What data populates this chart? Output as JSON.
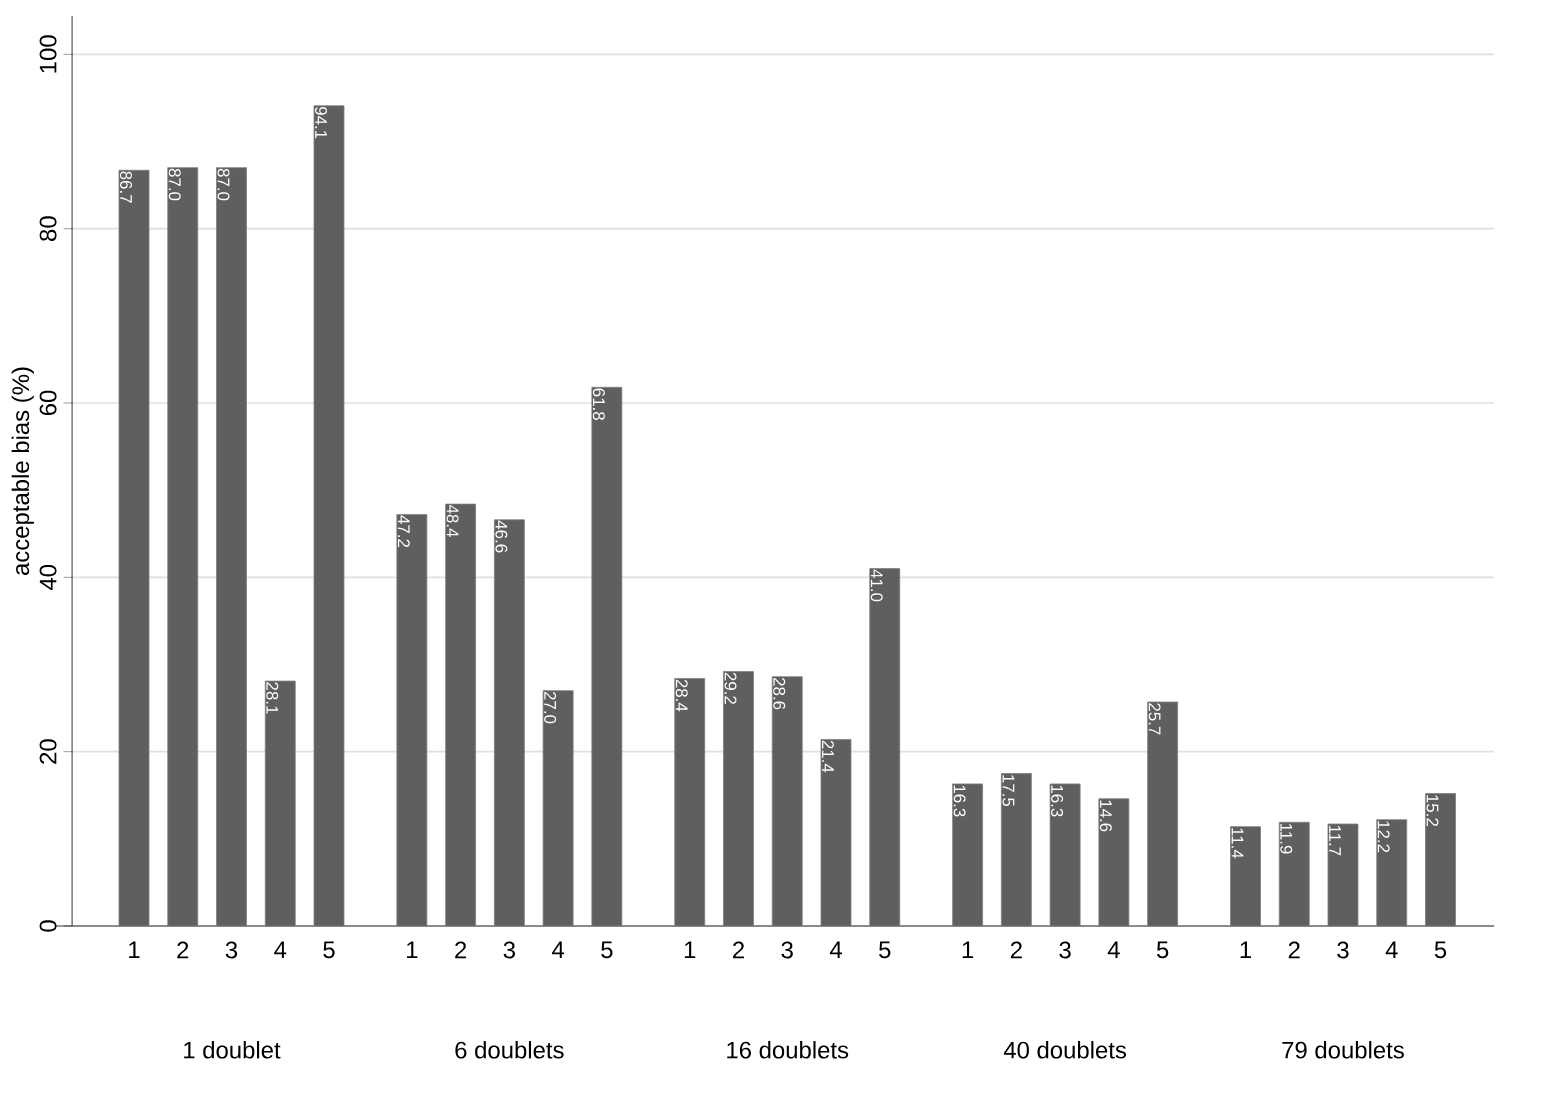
{
  "chart_data": {
    "type": "bar",
    "ylabel": "acceptable bias (%)",
    "categories": [
      "1",
      "2",
      "3",
      "4",
      "5",
      "1",
      "2",
      "3",
      "4",
      "5",
      "1",
      "2",
      "3",
      "4",
      "5",
      "1",
      "2",
      "3",
      "4",
      "5",
      "1",
      "2",
      "3",
      "4",
      "5"
    ],
    "values": [
      86.7,
      87.0,
      87.0,
      28.1,
      94.1,
      47.2,
      48.4,
      46.6,
      27.0,
      61.8,
      28.4,
      29.2,
      28.6,
      21.4,
      41.0,
      16.3,
      17.5,
      16.3,
      14.6,
      25.7,
      11.4,
      11.9,
      11.7,
      12.2,
      15.2
    ],
    "value_labels": [
      "86.7",
      "87.0",
      "87.0",
      "28.1",
      "94.1",
      "47.2",
      "48.4",
      "46.6",
      "27.0",
      "61.8",
      "28.4",
      "29.2",
      "28.6",
      "21.4",
      "41.0",
      "16.3",
      "17.5",
      "16.3",
      "14.6",
      "25.7",
      "11.4",
      "11.9",
      "11.7",
      "12.2",
      "15.2"
    ],
    "color": "#5f5f5f",
    "annotations": [
      "1 doublet",
      "6 doublets",
      "16 doublets",
      "40 doublets",
      "79 doublets"
    ],
    "ylim": [
      0,
      104.4
    ],
    "yticks": [
      0,
      20,
      40,
      60,
      80,
      100
    ],
    "grid": "y"
  }
}
